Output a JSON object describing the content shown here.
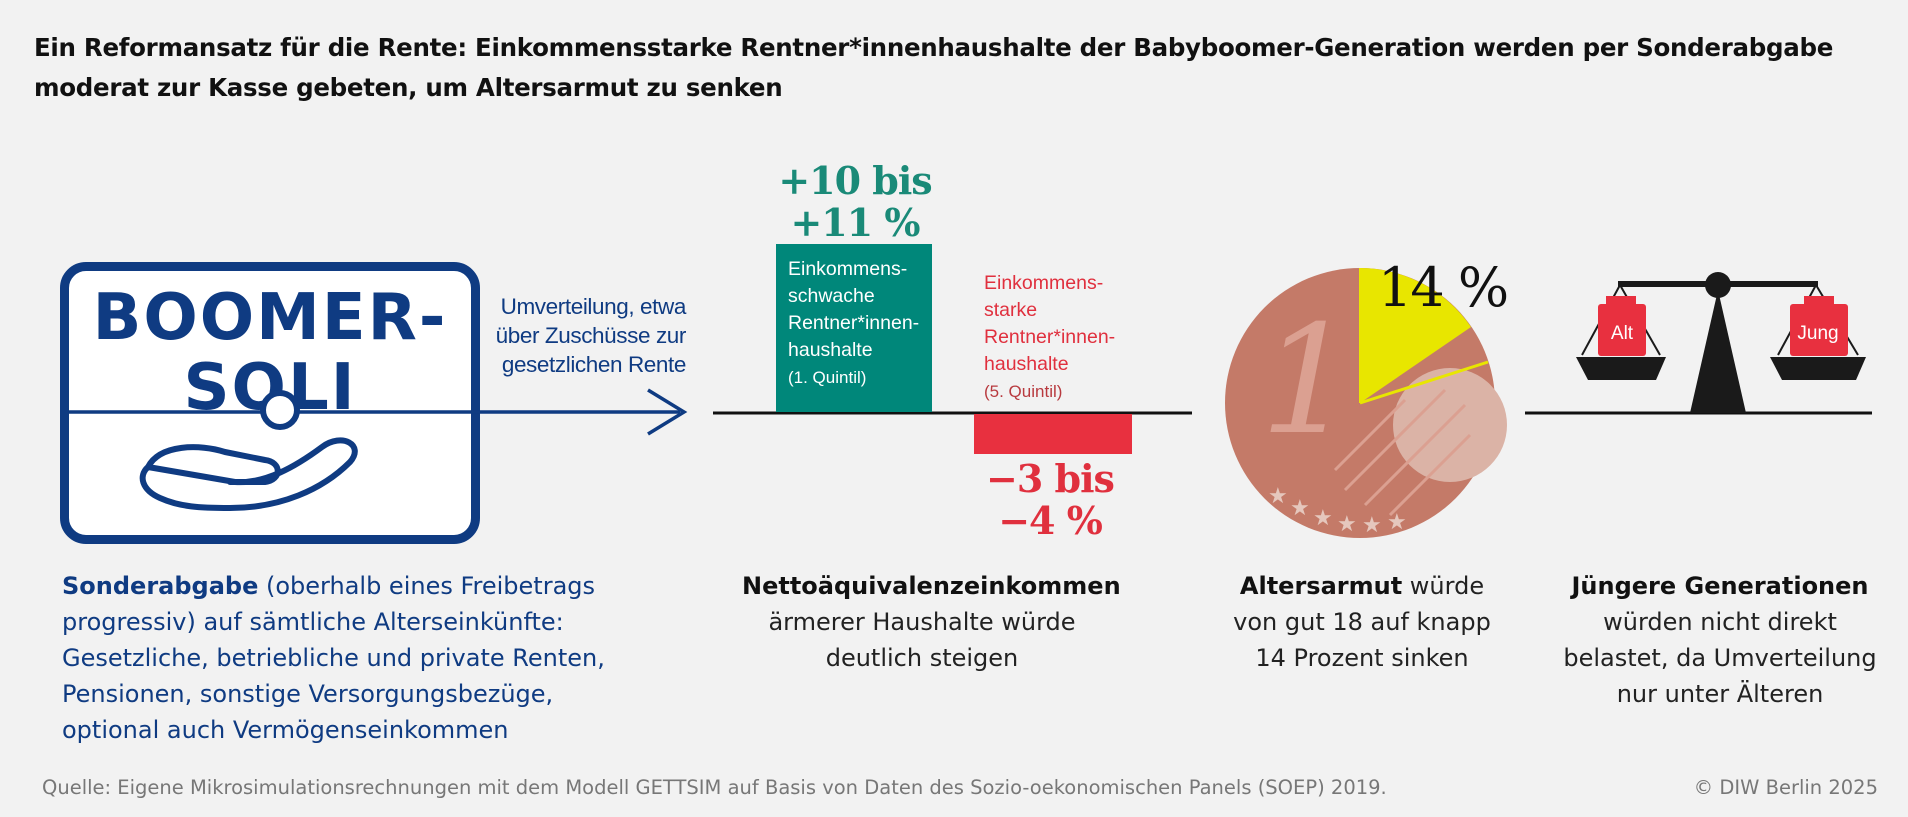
{
  "title": "Ein Reformansatz für die Rente: Einkommensstarke Rentner*innenhaushalte der Babyboomer-Generation werden per Sonderabgabe moderat zur Kasse gebeten, um Altersarmut zu senken",
  "boomer_soli": {
    "line1": "BOOMER-",
    "line2": "SOLI"
  },
  "redistribution": {
    "line1": "Umverteilung, etwa",
    "line2": "über Zuschüsse zur",
    "line3": "gesetzlichen Rente"
  },
  "chart_data": {
    "type": "bar",
    "categories": [
      "Einkommensschwache Rentner*innenhaushalte (1. Quintil)",
      "Einkommensstarke Rentner*innenhaushalte (5. Quintil)"
    ],
    "ranges": [
      [
        10,
        11
      ],
      [
        -4,
        -3
      ]
    ],
    "unit": "%"
  },
  "bars": {
    "gain_label_1": "+10 bis",
    "gain_label_2": "+11 %",
    "green_l1": "Einkommens-",
    "green_l2": "schwache",
    "green_l3": "Rentner*innen-",
    "green_l4": "haushalte",
    "green_quintil": "(1. Quintil)",
    "red_l1": "Einkommens-",
    "red_l2": "starke",
    "red_l3": "Rentner*innen-",
    "red_l4": "haushalte",
    "red_quintil": "(5. Quintil)",
    "loss_label_1": "−3 bis",
    "loss_label_2": "−4 %",
    "color_gain": "#00877a",
    "color_loss": "#e8303f"
  },
  "coin": {
    "percent": "14 %",
    "denomination": "1",
    "share_highlight": 14,
    "color_coin": "#c47a68",
    "color_highlight": "#e8e600"
  },
  "scale": {
    "left_weight": "Alt",
    "right_weight": "Jung"
  },
  "captions": {
    "c1_bold": "Sonderabgabe",
    "c1_rest": " (oberhalb eines Freibetrags",
    "c1_l2": "progressiv) auf sämtliche Alterseinkünfte:",
    "c1_l3": "Gesetzliche, betriebliche und private Renten,",
    "c1_l4": "Pensionen, sonstige Versorgungsbezüge,",
    "c1_l5": "optional auch Vermögenseinkommen",
    "c2_bold": "Nettoäquivalenzeinkommen",
    "c2_l2": "ärmerer Haushalte würde",
    "c2_l3": "deutlich steigen",
    "c3_bold": "Altersarmut",
    "c3_rest": " würde",
    "c3_l2": "von gut 18 auf knapp",
    "c3_l3": "14 Prozent sinken",
    "c4_bold": "Jüngere Generationen",
    "c4_l2": "würden nicht direkt",
    "c4_l3": "belastet, da Umverteilung",
    "c4_l4": "nur unter Älteren"
  },
  "footer": {
    "source": "Quelle: Eigene Mikrosimulationsrechnungen mit dem Modell GETTSIM auf Basis von Daten des Sozio-oekonomischen Panels (SOEP) 2019.",
    "copyright": "© DIW Berlin 2025"
  }
}
